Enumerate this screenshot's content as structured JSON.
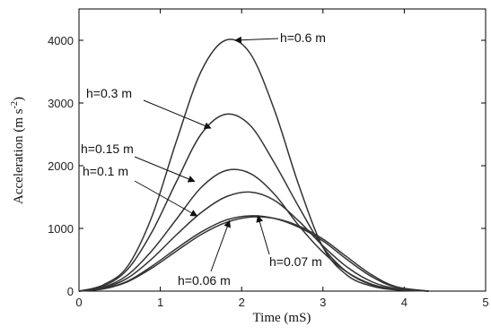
{
  "chart_data": {
    "type": "line",
    "title": "",
    "xlabel": "Time (mS)",
    "ylabel_main": "Acceleration (m s",
    "ylabel_sup": "-2",
    "ylabel_close": ")",
    "xlim": [
      0,
      5
    ],
    "ylim": [
      0,
      4500
    ],
    "xticks": [
      "0",
      "1",
      "2",
      "3",
      "4",
      "5"
    ],
    "yticks": [
      "0",
      "1000",
      "2000",
      "3000",
      "4000"
    ],
    "grid": false,
    "series": [
      {
        "name": "h=0.6 m",
        "x": [
          0,
          0.3,
          0.6,
          0.9,
          1.2,
          1.5,
          1.8,
          2.1,
          2.4,
          2.7,
          3.0,
          3.3,
          3.6,
          3.9,
          4.3
        ],
        "y": [
          0,
          100,
          400,
          1200,
          2400,
          3500,
          4000,
          3800,
          2900,
          1700,
          700,
          250,
          80,
          20,
          0
        ]
      },
      {
        "name": "h=0.3 m",
        "x": [
          0,
          0.3,
          0.6,
          0.9,
          1.2,
          1.5,
          1.8,
          2.1,
          2.4,
          2.7,
          3.0,
          3.3,
          3.6,
          3.9,
          4.3
        ],
        "y": [
          0,
          80,
          350,
          950,
          1750,
          2500,
          2820,
          2650,
          2050,
          1350,
          700,
          300,
          100,
          30,
          0
        ]
      },
      {
        "name": "h=0.15 m",
        "x": [
          0,
          0.3,
          0.6,
          0.9,
          1.2,
          1.5,
          1.8,
          2.1,
          2.4,
          2.7,
          3.0,
          3.3,
          3.6,
          3.9,
          4.3
        ],
        "y": [
          0,
          60,
          260,
          650,
          1150,
          1650,
          1920,
          1880,
          1550,
          1050,
          620,
          300,
          110,
          30,
          0
        ]
      },
      {
        "name": "h=0.1 m",
        "x": [
          0,
          0.3,
          0.6,
          0.9,
          1.2,
          1.5,
          1.8,
          2.1,
          2.4,
          2.7,
          3.0,
          3.3,
          3.6,
          3.9,
          4.3
        ],
        "y": [
          0,
          50,
          210,
          520,
          900,
          1250,
          1500,
          1580,
          1450,
          1120,
          720,
          380,
          150,
          40,
          0
        ]
      },
      {
        "name": "h=0.07 m",
        "x": [
          0,
          0.3,
          0.6,
          0.9,
          1.2,
          1.5,
          1.8,
          2.1,
          2.4,
          2.7,
          3.0,
          3.3,
          3.6,
          3.9,
          4.3
        ],
        "y": [
          0,
          40,
          160,
          400,
          680,
          940,
          1130,
          1200,
          1160,
          1020,
          800,
          500,
          230,
          60,
          0
        ]
      },
      {
        "name": "h=0.06 m",
        "x": [
          0,
          0.3,
          0.6,
          0.9,
          1.2,
          1.5,
          1.8,
          2.1,
          2.4,
          2.7,
          3.0,
          3.3,
          3.6,
          3.9,
          4.3
        ],
        "y": [
          0,
          35,
          150,
          370,
          640,
          900,
          1090,
          1180,
          1160,
          1040,
          830,
          540,
          260,
          70,
          0
        ]
      }
    ],
    "annotations": [
      {
        "text": "h=0.6 m",
        "series": 0,
        "target": [
          1.92,
          4000
        ],
        "anchor": "right"
      },
      {
        "text": "h=0.3 m",
        "series": 1,
        "target": [
          1.62,
          2600
        ],
        "anchor": "upper-left"
      },
      {
        "text": "h=0.15 m",
        "series": 2,
        "target": [
          1.42,
          1750
        ],
        "anchor": "left"
      },
      {
        "text": "h=0.1 m",
        "series": 3,
        "target": [
          1.45,
          1200
        ],
        "anchor": "left"
      },
      {
        "text": "h=0.07 m",
        "series": 4,
        "target": [
          2.2,
          1200
        ],
        "anchor": "lower-right"
      },
      {
        "text": "h=0.06 m",
        "series": 5,
        "target": [
          1.85,
          1120
        ],
        "anchor": "bottom"
      }
    ]
  }
}
